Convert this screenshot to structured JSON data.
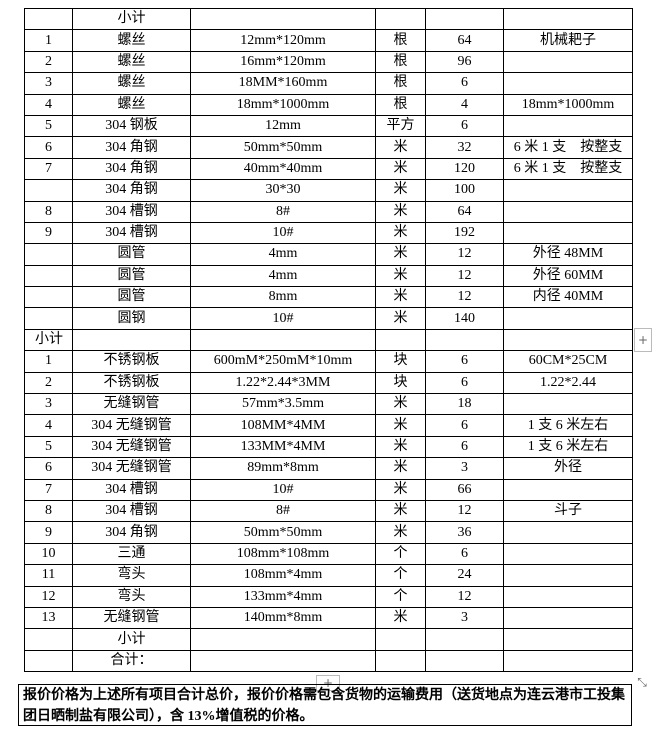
{
  "table": {
    "rows": [
      [
        null,
        "小计",
        null,
        null,
        null,
        null
      ],
      [
        "1",
        "螺丝",
        "12mm*120mm",
        "根",
        "64",
        "机械耙子"
      ],
      [
        "2",
        "螺丝",
        "16mm*120mm",
        "根",
        "96",
        null
      ],
      [
        "3",
        "螺丝",
        "18MM*160mm",
        "根",
        "6",
        null
      ],
      [
        "4",
        "螺丝",
        "18mm*1000mm",
        "根",
        "4",
        "18mm*1000mm"
      ],
      [
        "5",
        "304 钢板",
        "12mm",
        "平方",
        "6",
        null
      ],
      [
        "6",
        "304 角钢",
        "50mm*50mm",
        "米",
        "32",
        "6 米 1 支　按整支"
      ],
      [
        "7",
        "304 角钢",
        "40mm*40mm",
        "米",
        "120",
        "6 米 1 支　按整支"
      ],
      [
        null,
        "304 角钢",
        "30*30",
        "米",
        "100",
        null
      ],
      [
        "8",
        "304 槽钢",
        "8#",
        "米",
        "64",
        null
      ],
      [
        "9",
        "304 槽钢",
        "10#",
        "米",
        "192",
        null
      ],
      [
        null,
        "圆管",
        "4mm",
        "米",
        "12",
        "外径 48MM"
      ],
      [
        null,
        "圆管",
        "4mm",
        "米",
        "12",
        "外径 60MM"
      ],
      [
        null,
        "圆管",
        "8mm",
        "米",
        "12",
        "内径 40MM"
      ],
      [
        null,
        "圆钢",
        "10#",
        "米",
        "140",
        null
      ],
      [
        "小计",
        null,
        null,
        null,
        null,
        null
      ],
      [
        "1",
        "不锈钢板",
        "600mM*250mM*10mm",
        "块",
        "6",
        "60CM*25CM"
      ],
      [
        "2",
        "不锈钢板",
        "1.22*2.44*3MM",
        "块",
        "6",
        "1.22*2.44"
      ],
      [
        "3",
        "无缝钢管",
        "57mm*3.5mm",
        "米",
        "18",
        null
      ],
      [
        "4",
        "304 无缝钢管",
        "108MM*4MM",
        "米",
        "6",
        "1 支 6 米左右"
      ],
      [
        "5",
        "304 无缝钢管",
        "133MM*4MM",
        "米",
        "6",
        "1 支 6 米左右"
      ],
      [
        "6",
        "304 无缝钢管",
        "89mm*8mm",
        "米",
        "3",
        "外径"
      ],
      [
        "7",
        "304 槽钢",
        "10#",
        "米",
        "66",
        null
      ],
      [
        "8",
        "304 槽钢",
        "8#",
        "米",
        "12",
        "斗子"
      ],
      [
        "9",
        "304 角钢",
        "50mm*50mm",
        "米",
        "36",
        null
      ],
      [
        "10",
        "三通",
        "108mm*108mm",
        "个",
        "6",
        null
      ],
      [
        "11",
        "弯头",
        "108mm*4mm",
        "个",
        "24",
        null
      ],
      [
        "12",
        "弯头",
        "133mm*4mm",
        "个",
        "12",
        null
      ],
      [
        "13",
        "无缝钢管",
        "140mm*8mm",
        "米",
        "3",
        null
      ],
      [
        null,
        "小计",
        null,
        null,
        null,
        null
      ],
      [
        null,
        "合计：",
        null,
        null,
        null,
        null
      ]
    ]
  },
  "note": "报价价格为上述所有项目合计总价，报价价格需包含货物的运输费用（送货地点为连云港市工投集团日晒制盐有限公司），含 13%增值税的价格。"
}
